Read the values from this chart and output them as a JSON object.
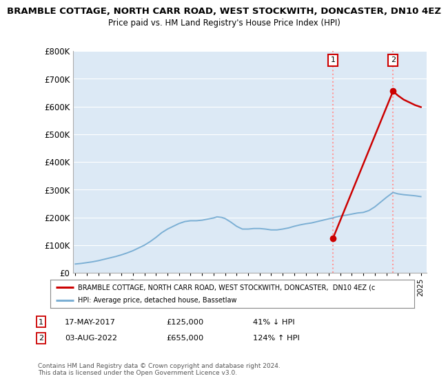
{
  "title": "BRAMBLE COTTAGE, NORTH CARR ROAD, WEST STOCKWITH, DONCASTER, DN10 4EZ",
  "subtitle": "Price paid vs. HM Land Registry's House Price Index (HPI)",
  "ylim": [
    0,
    800000
  ],
  "yticks": [
    0,
    100000,
    200000,
    300000,
    400000,
    500000,
    600000,
    700000,
    800000
  ],
  "ytick_labels": [
    "£0",
    "£100K",
    "£200K",
    "£300K",
    "£400K",
    "£500K",
    "£600K",
    "£700K",
    "£800K"
  ],
  "xlim": [
    1994.8,
    2025.5
  ],
  "hpi_color": "#7bafd4",
  "sale_color": "#cc0000",
  "sale1_year": 2017.37,
  "sale1_price": 125000,
  "sale2_year": 2022.58,
  "sale2_price": 655000,
  "vline_color": "#ff9999",
  "marker_color": "#cc0000",
  "legend_sale_label": "BRAMBLE COTTAGE, NORTH CARR ROAD, WEST STOCKWITH, DONCASTER,  DN10 4EZ (c",
  "legend_hpi_label": "HPI: Average price, detached house, Bassetlaw",
  "table_row1": [
    "1",
    "17-MAY-2017",
    "£125,000",
    "41% ↓ HPI"
  ],
  "table_row2": [
    "2",
    "03-AUG-2022",
    "£655,000",
    "124% ↑ HPI"
  ],
  "footnote": "Contains HM Land Registry data © Crown copyright and database right 2024.\nThis data is licensed under the Open Government Licence v3.0.",
  "background_color": "#ffffff",
  "plot_bg_color": "#dce9f5",
  "grid_color": "#ffffff",
  "hpi_data_x": [
    1995.0,
    1995.5,
    1996.0,
    1996.5,
    1997.0,
    1997.5,
    1998.0,
    1998.5,
    1999.0,
    1999.5,
    2000.0,
    2000.5,
    2001.0,
    2001.5,
    2002.0,
    2002.5,
    2003.0,
    2003.5,
    2004.0,
    2004.5,
    2005.0,
    2005.5,
    2006.0,
    2006.5,
    2007.0,
    2007.3,
    2007.7,
    2008.0,
    2008.5,
    2009.0,
    2009.5,
    2010.0,
    2010.5,
    2011.0,
    2011.5,
    2012.0,
    2012.5,
    2013.0,
    2013.5,
    2014.0,
    2014.5,
    2015.0,
    2015.5,
    2016.0,
    2016.5,
    2017.0,
    2017.37,
    2017.5,
    2018.0,
    2018.5,
    2019.0,
    2019.5,
    2020.0,
    2020.5,
    2021.0,
    2021.5,
    2022.0,
    2022.58,
    2023.0,
    2023.5,
    2024.0,
    2024.5,
    2025.0
  ],
  "hpi_data_y": [
    32000,
    34000,
    37000,
    40000,
    44000,
    49000,
    54000,
    59000,
    65000,
    72000,
    80000,
    90000,
    100000,
    113000,
    128000,
    145000,
    158000,
    168000,
    178000,
    185000,
    188000,
    188000,
    190000,
    194000,
    198000,
    202000,
    200000,
    196000,
    183000,
    168000,
    158000,
    158000,
    160000,
    160000,
    158000,
    155000,
    155000,
    158000,
    162000,
    168000,
    173000,
    177000,
    180000,
    185000,
    190000,
    195000,
    198000,
    200000,
    205000,
    208000,
    212000,
    216000,
    218000,
    225000,
    238000,
    255000,
    272000,
    290000,
    285000,
    282000,
    280000,
    278000,
    275000
  ],
  "sale_line_x": [
    2017.37,
    2022.58
  ],
  "sale_line_y": [
    125000,
    655000
  ],
  "post_sale2_x": [
    2022.58,
    2023.0,
    2023.5,
    2024.0,
    2024.5,
    2025.0
  ],
  "post_sale2_y": [
    655000,
    640000,
    625000,
    615000,
    605000,
    598000
  ]
}
